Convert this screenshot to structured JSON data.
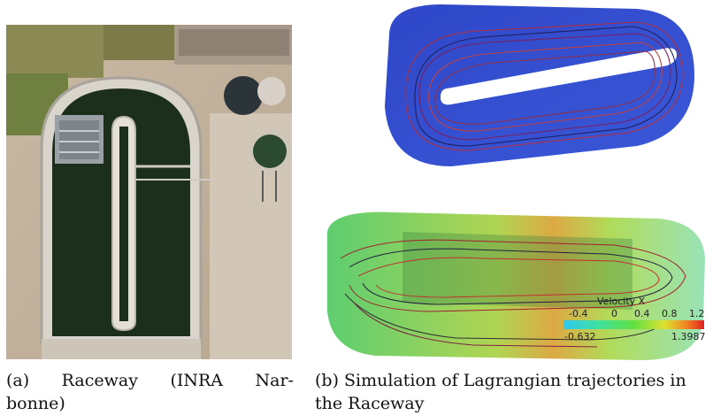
{
  "figure": {
    "panel_a": {
      "caption_label": "(a)",
      "caption_line1_words": [
        "Raceway",
        "(INRA",
        "Nar-"
      ],
      "caption_line2": "bonne)"
    },
    "panel_b": {
      "caption_line1": "(b) Simulation of Lagrangian trajectories in",
      "caption_line2": "the Raceway",
      "colorbar": {
        "title": "Velocity X",
        "ticks": [
          "-0.4",
          "0",
          "0.4",
          "0.8",
          "1.2"
        ],
        "min_label": "-0.632",
        "max_label": "1.3987"
      }
    }
  }
}
